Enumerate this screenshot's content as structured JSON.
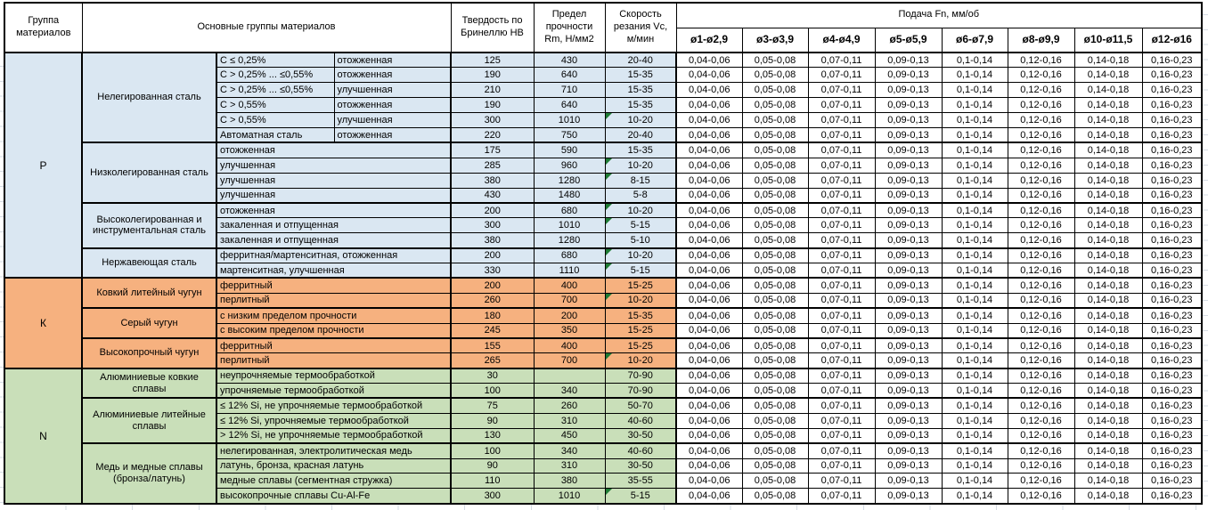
{
  "table": {
    "header": {
      "col_group": "Группа материалов",
      "col_main_groups": "Основные группы материалов",
      "col_hardness": "Твердость по Бринеллю HB",
      "col_strength": "Предел прочности Rm, Н/мм2",
      "col_speed": "Скорость резания Vc, м/мин",
      "feed_title": "Подача Fn, мм/об",
      "feed_cols": [
        "ø1-ø2,9",
        "ø3-ø3,9",
        "ø4-ø4,9",
        "ø5-ø5,9",
        "ø6-ø7,9",
        "ø8-ø9,9",
        "ø10-ø11,5",
        "ø12-ø16"
      ]
    },
    "feed_values": [
      "0,04-0,06",
      "0,05-0,08",
      "0,07-0,11",
      "0,09-0,13",
      "0,1-0,14",
      "0,12-0,16",
      "0,14-0,18",
      "0,16-0,23"
    ],
    "groups": [
      {
        "code": "P",
        "color": "#dae7f2",
        "subgroups": [
          {
            "name": "Нелегированная сталь",
            "rows": [
              {
                "condition": "C ≤ 0,25%",
                "state": "отожженная",
                "hb": "125",
                "rm": "430",
                "vc": "20-40",
                "marker": false
              },
              {
                "condition": "C > 0,25% ... ≤0,55%",
                "state": "отожженная",
                "hb": "190",
                "rm": "640",
                "vc": "15-35",
                "marker": false
              },
              {
                "condition": "C > 0,25% ... ≤0,55%",
                "state": "улучшенная",
                "hb": "210",
                "rm": "710",
                "vc": "15-35",
                "marker": false
              },
              {
                "condition": "C > 0,55%",
                "state": "отожженная",
                "hb": "190",
                "rm": "640",
                "vc": "15-35",
                "marker": false
              },
              {
                "condition": "C > 0,55%",
                "state": "улучшенная",
                "hb": "300",
                "rm": "1010",
                "vc": "10-20",
                "marker": true
              },
              {
                "condition": "Автоматная сталь",
                "state": "отожженная",
                "hb": "220",
                "rm": "750",
                "vc": "20-40",
                "marker": false
              }
            ]
          },
          {
            "name": "Низколегированная сталь",
            "rows": [
              {
                "condition": "отожженная",
                "state": null,
                "hb": "175",
                "rm": "590",
                "vc": "15-35",
                "marker": false
              },
              {
                "condition": "улучшенная",
                "state": null,
                "hb": "285",
                "rm": "960",
                "vc": "10-20",
                "marker": true
              },
              {
                "condition": "улучшенная",
                "state": null,
                "hb": "380",
                "rm": "1280",
                "vc": "8-15",
                "marker": true
              },
              {
                "condition": "улучшенная",
                "state": null,
                "hb": "430",
                "rm": "1480",
                "vc": "5-8",
                "marker": false
              }
            ]
          },
          {
            "name": "Высоколегированная и инструментальная сталь",
            "rows": [
              {
                "condition": "отожженная",
                "state": null,
                "hb": "200",
                "rm": "680",
                "vc": "10-20",
                "marker": true
              },
              {
                "condition": "закаленная и отпущенная",
                "state": null,
                "hb": "300",
                "rm": "1010",
                "vc": "5-15",
                "marker": true
              },
              {
                "condition": "закаленная и отпущенная",
                "state": null,
                "hb": "380",
                "rm": "1280",
                "vc": "5-10",
                "marker": false
              }
            ]
          },
          {
            "name": "Нержавеющая сталь",
            "rows": [
              {
                "condition": "ферритная/мартенситная, отожженная",
                "state": null,
                "hb": "200",
                "rm": "680",
                "vc": "10-20",
                "marker": true
              },
              {
                "condition": "мартенситная, улучшенная",
                "state": null,
                "hb": "330",
                "rm": "1110",
                "vc": "5-15",
                "marker": true
              }
            ]
          }
        ]
      },
      {
        "code": "К",
        "color": "#f6b17f",
        "subgroups": [
          {
            "name": "Ковкий литейный чугун",
            "rows": [
              {
                "condition": "ферритный",
                "state": null,
                "hb": "200",
                "rm": "400",
                "vc": "15-25",
                "marker": false
              },
              {
                "condition": "перлитный",
                "state": null,
                "hb": "260",
                "rm": "700",
                "vc": "10-20",
                "marker": true
              }
            ]
          },
          {
            "name": "Серый чугун",
            "rows": [
              {
                "condition": "с низким пределом прочности",
                "state": null,
                "hb": "180",
                "rm": "200",
                "vc": "15-35",
                "marker": false
              },
              {
                "condition": "с высоким пределом прочности",
                "state": null,
                "hb": "245",
                "rm": "350",
                "vc": "15-25",
                "marker": false
              }
            ]
          },
          {
            "name": "Высокопрочный чугун",
            "rows": [
              {
                "condition": "ферритный",
                "state": null,
                "hb": "155",
                "rm": "400",
                "vc": "15-25",
                "marker": false
              },
              {
                "condition": "перлитный",
                "state": null,
                "hb": "265",
                "rm": "700",
                "vc": "10-20",
                "marker": true
              }
            ]
          }
        ]
      },
      {
        "code": "N",
        "color": "#c9dfb9",
        "subgroups": [
          {
            "name": "Алюминиевые ковкие сплавы",
            "rows": [
              {
                "condition": "неупрочняемые термообработкой",
                "state": null,
                "hb": "30",
                "rm": "",
                "vc": "70-90",
                "marker": false
              },
              {
                "condition": "упрочняемые термообработкой",
                "state": null,
                "hb": "100",
                "rm": "340",
                "vc": "70-90",
                "marker": false
              }
            ]
          },
          {
            "name": "Алюминиевые литейные сплавы",
            "rows": [
              {
                "condition": "≤ 12% Si, не упрочняемые термообработкой",
                "state": null,
                "hb": "75",
                "rm": "260",
                "vc": "50-70",
                "marker": false
              },
              {
                "condition": "≤ 12% Si, упрочняемые термообработкой",
                "state": null,
                "hb": "90",
                "rm": "310",
                "vc": "40-60",
                "marker": false
              },
              {
                "condition": "> 12% Si, не упрочняемые термообработкой",
                "state": null,
                "hb": "130",
                "rm": "450",
                "vc": "30-50",
                "marker": false
              }
            ]
          },
          {
            "name": "Медь и медные сплавы (бронза/латунь)",
            "rows": [
              {
                "condition": "нелегированная, электролитическая медь",
                "state": null,
                "hb": "100",
                "rm": "340",
                "vc": "40-60",
                "marker": false
              },
              {
                "condition": "латунь, бронза, красная латунь",
                "state": null,
                "hb": "90",
                "rm": "310",
                "vc": "30-50",
                "marker": false
              },
              {
                "condition": "медные сплавы (сегментная стружка)",
                "state": null,
                "hb": "110",
                "rm": "380",
                "vc": "35-55",
                "marker": false
              },
              {
                "condition": "высокопрочные сплавы Cu-Al-Fe",
                "state": null,
                "hb": "300",
                "rm": "1010",
                "vc": "5-15",
                "marker": true
              }
            ]
          }
        ]
      }
    ]
  },
  "colors": {
    "group_p": "#dae7f2",
    "group_k": "#f6b17f",
    "group_n": "#c9dfb9",
    "comment_flag": "#1e7b34",
    "cell_border": "#000000",
    "gridline": "#d6dce4"
  }
}
